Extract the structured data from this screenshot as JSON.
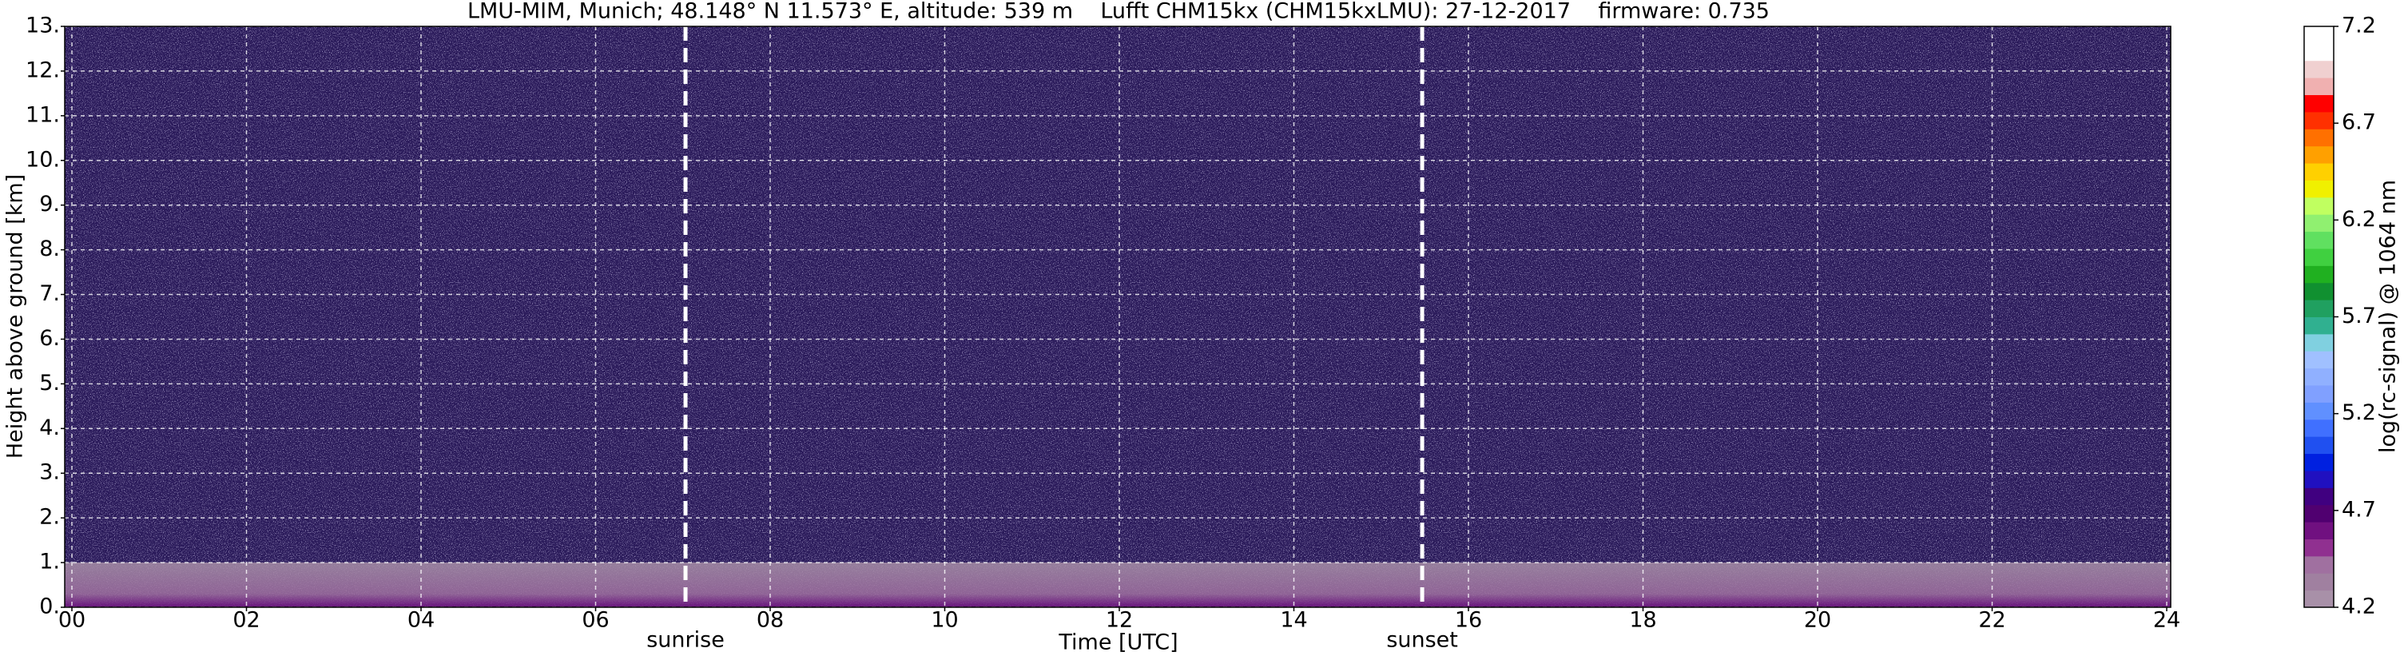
{
  "chart_data": {
    "type": "heatmap",
    "title": "LMU-MIM, Munich; 48.148° N 11.573° E, altitude: 539 m    Lufft CHM15kx (CHM15kxLMU): 27-12-2017    firmware: 0.735",
    "x_label": "Time [UTC]",
    "y_label": "Height above ground [km]",
    "xlim": [
      0,
      24
    ],
    "xticks": [
      {
        "value": 0,
        "label": "00"
      },
      {
        "value": 2,
        "label": "02"
      },
      {
        "value": 4,
        "label": "04"
      },
      {
        "value": 6,
        "label": "06"
      },
      {
        "value": 8,
        "label": "08"
      },
      10,
      12,
      14,
      16,
      18,
      20,
      22,
      24
    ],
    "ylim": [
      0,
      13
    ],
    "yticks": [
      {
        "value": 0,
        "label": "0."
      },
      {
        "value": 1,
        "label": "1."
      },
      {
        "value": 2,
        "label": "2."
      },
      {
        "value": 3,
        "label": "3."
      },
      {
        "value": 4,
        "label": "4."
      },
      {
        "value": 5,
        "label": "5."
      },
      {
        "value": 6,
        "label": "6."
      },
      {
        "value": 7,
        "label": "7."
      },
      {
        "value": 8,
        "label": "8."
      },
      {
        "value": 9,
        "label": "9."
      },
      {
        "value": 10,
        "label": "10."
      },
      {
        "value": 11,
        "label": "11."
      },
      {
        "value": 12,
        "label": "12."
      },
      {
        "value": 13,
        "label": "13."
      }
    ],
    "grid": true,
    "annotations": [
      {
        "text": "sunrise",
        "x": 7.03
      },
      {
        "text": "sunset",
        "x": 15.47
      }
    ],
    "colorbar": {
      "label": "log(rc-signal) @ 1064 nm",
      "lim": [
        4.2,
        7.2
      ],
      "ticks": [
        4.2,
        4.7,
        5.2,
        5.7,
        6.2,
        6.7,
        7.2
      ],
      "colors": [
        "#a890a8",
        "#a080a0",
        "#a070a0",
        "#903090",
        "#701080",
        "#500070",
        "#400080",
        "#2010c0",
        "#0020e0",
        "#2050f0",
        "#4070ff",
        "#6090ff",
        "#80a0ff",
        "#90b0ff",
        "#a0c0ff",
        "#80d0e0",
        "#30b090",
        "#20a060",
        "#109030",
        "#20b020",
        "#40d040",
        "#60e060",
        "#90f070",
        "#c0ff60",
        "#f0f000",
        "#ffd000",
        "#ffa000",
        "#ff7000",
        "#ff3000",
        "#ff0000",
        "#f0b0b0",
        "#f0d0d0",
        "#ffffff",
        "#ffffff"
      ]
    }
  }
}
